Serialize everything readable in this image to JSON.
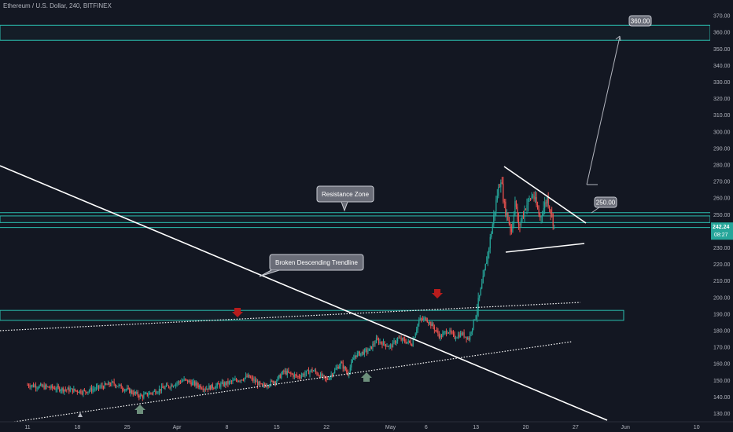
{
  "header": {
    "symbol_title": "Ethereum / U.S. Dollar, 240, BITFINEX"
  },
  "chart_data": {
    "type": "candlestick",
    "price_axis": {
      "ticks": [
        130,
        140,
        150,
        160,
        170,
        180,
        190,
        200,
        210,
        220,
        230,
        240,
        250,
        260,
        270,
        280,
        290,
        300,
        310,
        320,
        330,
        340,
        350,
        360,
        370
      ],
      "ylim": [
        126,
        376
      ]
    },
    "time_axis": {
      "labels": [
        "11",
        "18",
        "25",
        "Apr",
        "8",
        "15",
        "22",
        "May",
        "6",
        "13",
        "20",
        "27",
        "Jun",
        "10"
      ],
      "label_days": [
        0,
        7,
        14,
        21,
        28,
        35,
        42,
        51,
        56,
        63,
        70,
        77,
        84,
        94
      ]
    },
    "last_price": "242.24",
    "countdown": "08:27",
    "price_path": [
      [
        0,
        147
      ],
      [
        4,
        145
      ],
      [
        8,
        143
      ],
      [
        12,
        148
      ],
      [
        16,
        140
      ],
      [
        19,
        145
      ],
      [
        22,
        150
      ],
      [
        25,
        145
      ],
      [
        28,
        148
      ],
      [
        31,
        152
      ],
      [
        33,
        146
      ],
      [
        35,
        150
      ],
      [
        36,
        155
      ],
      [
        38,
        152
      ],
      [
        40,
        156
      ],
      [
        42,
        150
      ],
      [
        44,
        160
      ],
      [
        45,
        154
      ],
      [
        46,
        165
      ],
      [
        48,
        168
      ],
      [
        49,
        174
      ],
      [
        51,
        170
      ],
      [
        52,
        175
      ],
      [
        54,
        172
      ],
      [
        55,
        186
      ],
      [
        56,
        187
      ],
      [
        57,
        182
      ],
      [
        58,
        176
      ],
      [
        59,
        180
      ],
      [
        60,
        176
      ],
      [
        61,
        178
      ],
      [
        62,
        175
      ],
      [
        63,
        190
      ],
      [
        64,
        210
      ],
      [
        65,
        235
      ],
      [
        66,
        262
      ],
      [
        66.5,
        272
      ],
      [
        67,
        255
      ],
      [
        68,
        240
      ],
      [
        68.5,
        258
      ],
      [
        69,
        242
      ],
      [
        70,
        255
      ],
      [
        71,
        262
      ],
      [
        72,
        248
      ],
      [
        73,
        260
      ],
      [
        73.5,
        252
      ],
      [
        74,
        243
      ]
    ],
    "annotations": {
      "resistance_label": "Resistance Zone",
      "trendline_label": "Broken Descending Trendline",
      "target_label_1": "250.00",
      "target_label_2": "360.00"
    },
    "zones": [
      {
        "name": "top zone",
        "from": 355,
        "to": 364
      },
      {
        "name": "resistance zone",
        "from": 245,
        "to": 249
      },
      {
        "name": "support zone",
        "from": 186,
        "to": 192
      }
    ],
    "horizontal_lines": [
      251,
      242
    ],
    "colors": {
      "background": "#131722",
      "bull": "#26a69a",
      "bear": "#ef5350",
      "zone": "#2bbfb0",
      "axis_text": "#b2b5be",
      "price_tag": "#26a69a"
    }
  }
}
